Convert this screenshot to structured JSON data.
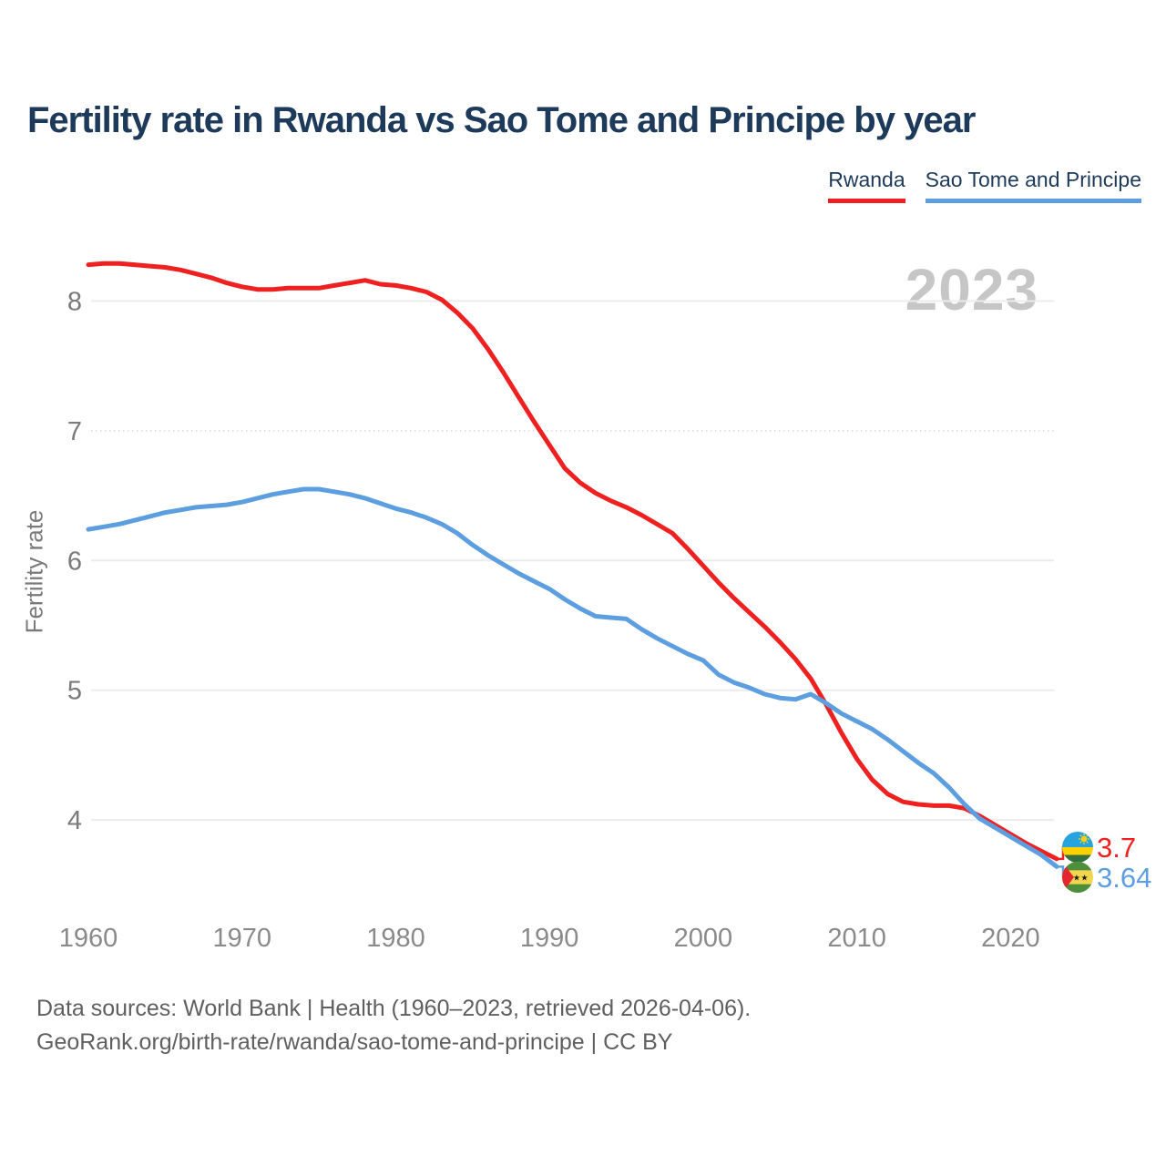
{
  "header": {
    "title": "Fertility rate in Rwanda vs Sao Tome and Principe by year"
  },
  "legend": {
    "items": [
      {
        "label": "Rwanda",
        "color": "#ee2020"
      },
      {
        "label": "Sao Tome and Principe",
        "color": "#5d9ee0"
      }
    ]
  },
  "watermark": {
    "year": "2023"
  },
  "axes": {
    "y_title": "Fertility rate",
    "y_ticks": [
      8,
      7,
      6,
      5,
      4
    ],
    "x_ticks": [
      1960,
      1970,
      1980,
      1990,
      2000,
      2010,
      2020
    ]
  },
  "end_labels": [
    {
      "series": "Rwanda",
      "value": "3.7",
      "color": "#ee2020",
      "flag": "rwanda-flag-icon"
    },
    {
      "series": "Sao Tome and Principe",
      "value": "3.64",
      "color": "#5d9ee0",
      "flag": "sao-tome-flag-icon"
    }
  ],
  "footer": {
    "line1": "Data sources: World Bank | Health (1960–2023, retrieved 2026-04-06).",
    "line2": "GeoRank.org/birth-rate/rwanda/sao-tome-and-principe | CC BY"
  },
  "chart_data": {
    "type": "line",
    "title": "Fertility rate in Rwanda vs Sao Tome and Principe by year",
    "xlabel": "",
    "ylabel": "Fertility rate",
    "xlim": [
      1960,
      2023
    ],
    "ylim": [
      3.4,
      8.6
    ],
    "grid": "horizontal",
    "legend_position": "top-right",
    "x": [
      1960,
      1961,
      1962,
      1963,
      1964,
      1965,
      1966,
      1967,
      1968,
      1969,
      1970,
      1971,
      1972,
      1973,
      1974,
      1975,
      1976,
      1977,
      1978,
      1979,
      1980,
      1981,
      1982,
      1983,
      1984,
      1985,
      1986,
      1987,
      1988,
      1989,
      1990,
      1991,
      1992,
      1993,
      1994,
      1995,
      1996,
      1997,
      1998,
      1999,
      2000,
      2001,
      2002,
      2003,
      2004,
      2005,
      2006,
      2007,
      2008,
      2009,
      2010,
      2011,
      2012,
      2013,
      2014,
      2015,
      2016,
      2017,
      2018,
      2019,
      2020,
      2021,
      2022,
      2023
    ],
    "series": [
      {
        "name": "Rwanda",
        "color": "#ee2020",
        "final_value": 3.7,
        "values": [
          8.28,
          8.29,
          8.29,
          8.28,
          8.27,
          8.26,
          8.24,
          8.21,
          8.18,
          8.14,
          8.11,
          8.09,
          8.09,
          8.1,
          8.1,
          8.1,
          8.12,
          8.14,
          8.16,
          8.13,
          8.12,
          8.1,
          8.07,
          8.01,
          7.91,
          7.79,
          7.63,
          7.45,
          7.26,
          7.07,
          6.89,
          6.71,
          6.6,
          6.52,
          6.46,
          6.41,
          6.35,
          6.28,
          6.21,
          6.09,
          5.96,
          5.83,
          5.71,
          5.6,
          5.49,
          5.37,
          5.24,
          5.09,
          4.89,
          4.67,
          4.47,
          4.31,
          4.2,
          4.14,
          4.12,
          4.11,
          4.11,
          4.09,
          4.03,
          3.96,
          3.89,
          3.82,
          3.76,
          3.7
        ]
      },
      {
        "name": "Sao Tome and Principe",
        "color": "#5d9ee0",
        "final_value": 3.64,
        "values": [
          6.24,
          6.26,
          6.28,
          6.31,
          6.34,
          6.37,
          6.39,
          6.41,
          6.42,
          6.43,
          6.45,
          6.48,
          6.51,
          6.53,
          6.55,
          6.55,
          6.53,
          6.51,
          6.48,
          6.44,
          6.4,
          6.37,
          6.33,
          6.28,
          6.21,
          6.12,
          6.04,
          5.97,
          5.9,
          5.84,
          5.78,
          5.7,
          5.63,
          5.57,
          5.56,
          5.55,
          5.47,
          5.4,
          5.34,
          5.28,
          5.23,
          5.12,
          5.06,
          5.02,
          4.97,
          4.94,
          4.93,
          4.97,
          4.9,
          4.82,
          4.76,
          4.7,
          4.62,
          4.53,
          4.44,
          4.36,
          4.25,
          4.12,
          4.01,
          3.94,
          3.87,
          3.8,
          3.73,
          3.64
        ]
      }
    ]
  },
  "flag_colors": {
    "rwanda": {
      "blue": "#27a3de",
      "yellow": "#fad201",
      "green": "#35713f",
      "sun": "#f7d117"
    },
    "sao_tome": {
      "green": "#4d8f3c",
      "yellow": "#f2d64e",
      "red": "#e4262e",
      "star": "#1a1a1a"
    }
  }
}
